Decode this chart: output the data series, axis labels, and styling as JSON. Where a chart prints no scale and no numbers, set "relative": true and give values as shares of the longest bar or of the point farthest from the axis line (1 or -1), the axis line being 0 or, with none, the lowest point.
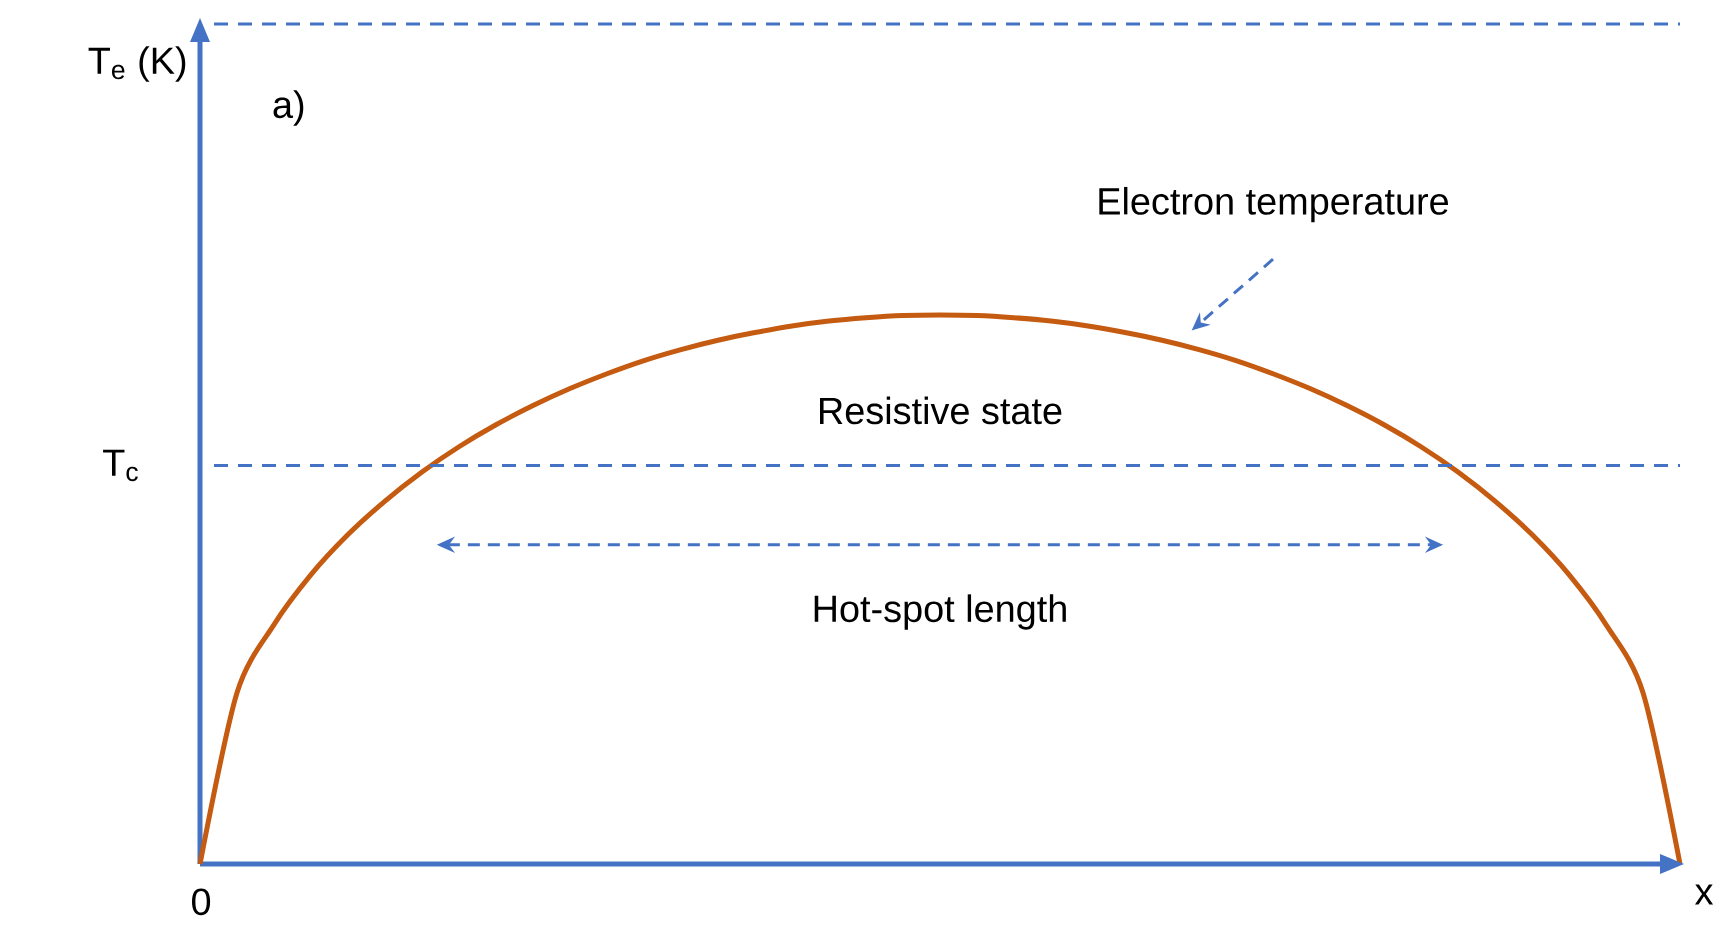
{
  "chart_data": {
    "type": "line",
    "relative": true,
    "xlabel": "x",
    "categories": [
      null,
      null,
      null,
      null,
      null,
      null,
      null,
      null,
      null,
      null,
      null,
      null,
      null,
      null,
      null,
      null,
      null,
      null,
      null,
      null,
      null,
      null,
      null,
      null,
      null,
      null,
      null,
      null,
      null,
      null,
      null,
      null,
      null,
      null,
      null,
      null,
      null,
      null,
      null,
      null,
      null
    ],
    "series": [
      {
        "color": "#c55a11",
        "values": [
          0,
          0.312,
          0.436,
          0.527,
          0.6,
          0.661,
          0.714,
          0.76,
          0.8,
          0.835,
          0.866,
          0.893,
          0.917,
          0.937,
          0.954,
          0.968,
          0.98,
          0.989,
          0.995,
          0.999,
          1,
          0.999,
          0.995,
          0.989,
          0.98,
          0.968,
          0.954,
          0.937,
          0.917,
          0.893,
          0.866,
          0.835,
          0.8,
          0.76,
          0.714,
          0.661,
          0.6,
          0.527,
          0.436,
          0.312,
          0
        ]
      }
    ],
    "ref_lines": [
      {
        "axis": "y",
        "value": 0.726,
        "label": "T$_{c}$",
        "color": "#4472c4",
        "line_style": "dashed"
      },
      {
        "axis": "y",
        "value": 1.53,
        "label": null,
        "color": "#4472c4",
        "line_style": "dashed"
      }
    ],
    "annotations": [
      "a)",
      "Electron temperature",
      "Resistive state",
      "Hot-spot length",
      "0",
      "T$_{e}$ (K)"
    ]
  }
}
